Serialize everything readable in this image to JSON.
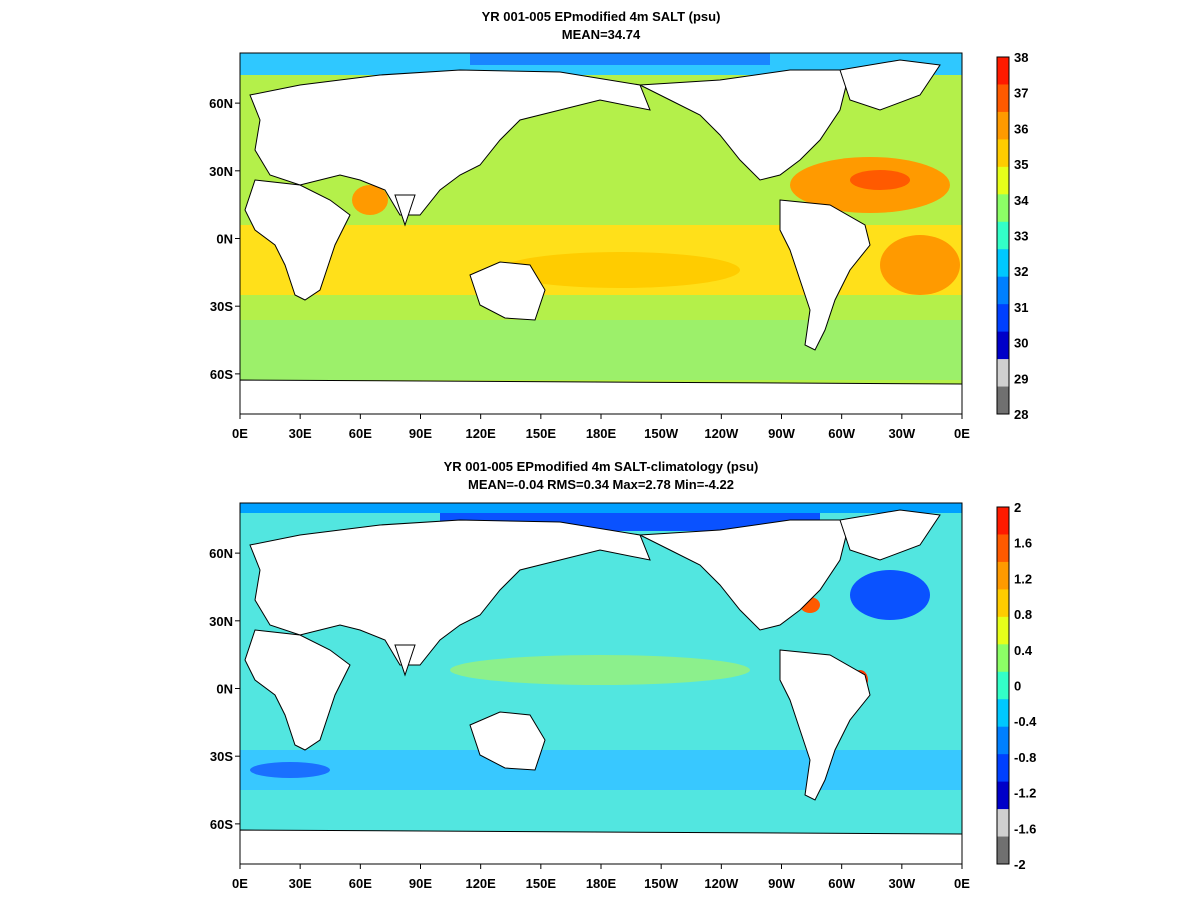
{
  "panels": [
    {
      "title": "YR 001-005 EPmodified 4m SALT (psu)",
      "subtitle": "MEAN=34.74",
      "colorbar": {
        "labels": [
          "38",
          "37",
          "36",
          "35",
          "34",
          "33",
          "32",
          "31",
          "30",
          "29",
          "28"
        ],
        "colors": [
          "#ff1a00",
          "#ff5a00",
          "#ff9a00",
          "#ffcc00",
          "#e6ff1a",
          "#8cff66",
          "#33ffc8",
          "#00c8ff",
          "#0080ff",
          "#0040ff",
          "#0000c8",
          "#d0d0d0",
          "#707070"
        ]
      },
      "chart_data": {
        "type": "heatmap",
        "variable": "4m SALT",
        "units": "psu",
        "mean": 34.74,
        "colorbar_range": [
          28,
          38
        ]
      }
    },
    {
      "title": "YR 001-005 EPmodified 4m SALT-climatology (psu)",
      "subtitle": "MEAN=-0.04   RMS=0.34   Max=2.78   Min=-4.22",
      "colorbar": {
        "labels": [
          "2",
          "1.6",
          "1.2",
          "0.8",
          "0.4",
          "0",
          "-0.4",
          "-0.8",
          "-1.2",
          "-1.6",
          "-2"
        ],
        "colors": [
          "#ff1a00",
          "#ff5a00",
          "#ff9a00",
          "#ffcc00",
          "#e6ff1a",
          "#8cff66",
          "#33ffc8",
          "#00c8ff",
          "#0080ff",
          "#0040ff",
          "#0000c8",
          "#d0d0d0",
          "#707070"
        ]
      },
      "chart_data": {
        "type": "heatmap",
        "variable": "4m SALT-climatology",
        "units": "psu",
        "mean": -0.04,
        "rms": 0.34,
        "max": 2.78,
        "min": -4.22,
        "colorbar_range": [
          -2,
          2
        ]
      }
    }
  ],
  "axes": {
    "x_ticks": [
      "0E",
      "30E",
      "60E",
      "90E",
      "120E",
      "150E",
      "180E",
      "150W",
      "120W",
      "90W",
      "60W",
      "30W",
      "0E"
    ],
    "y_ticks": [
      "60N",
      "30N",
      "0N",
      "30S",
      "60S"
    ]
  }
}
